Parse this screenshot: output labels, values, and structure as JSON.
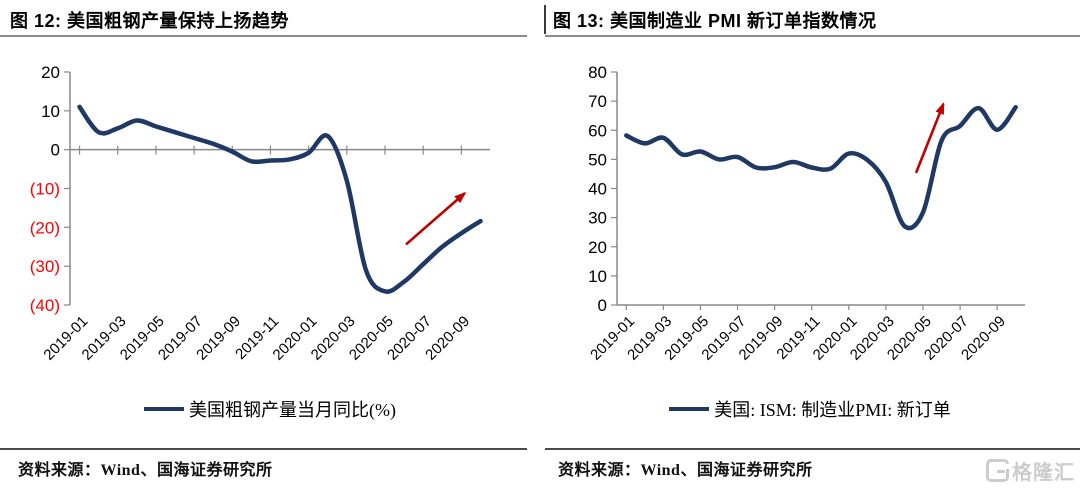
{
  "figures": [
    {
      "title": "图 12:  美国粗钢产量保持上扬趋势",
      "source": "资料来源：Wind、国海证券研究所"
    },
    {
      "title": "图 13:  美国制造业 PMI 新订单指数情况",
      "source": "资料来源：Wind、国海证券研究所"
    }
  ],
  "watermark": {
    "text": "格隆汇"
  },
  "colors": {
    "line": "#1f3864",
    "arrow": "#c00000",
    "negative_label": "#fe0000",
    "axis": "#888888",
    "text": "#000000",
    "watermark": "#cccccc"
  },
  "chart_data": [
    {
      "type": "line",
      "title": "图 12:  美国粗钢产量保持上扬趋势",
      "legend": "美国粗钢产量当月同比(%)",
      "x": [
        "2019-01",
        "2019-02",
        "2019-03",
        "2019-04",
        "2019-05",
        "2019-06",
        "2019-07",
        "2019-08",
        "2019-09",
        "2019-10",
        "2019-11",
        "2019-12",
        "2020-01",
        "2020-02",
        "2020-03",
        "2020-04",
        "2020-05",
        "2020-06",
        "2020-07",
        "2020-08",
        "2020-09",
        "2020-10"
      ],
      "values": [
        11.0,
        4.5,
        5.5,
        7.5,
        6.0,
        4.5,
        3.0,
        1.5,
        -0.5,
        -3.0,
        -2.8,
        -2.5,
        -0.8,
        3.5,
        -8.0,
        -31.0,
        -36.5,
        -34.0,
        -29.5,
        -25.0,
        -21.5,
        -18.4
      ],
      "ylim": [
        -40,
        20
      ],
      "ytick_step": 10,
      "ylabel_negative_style": "red-parentheses",
      "x_axis_at": "zero",
      "xtick_every": 2,
      "grid": false,
      "legend_position": "bottom",
      "annotation_arrow": {
        "units": "plot-fraction",
        "x1": 0.8,
        "y1": 0.74,
        "x2": 0.94,
        "y2": 0.52
      }
    },
    {
      "type": "line",
      "title": "图 13:  美国制造业 PMI 新订单指数情况",
      "legend": "美国: ISM: 制造业PMI: 新订单",
      "x": [
        "2019-01",
        "2019-02",
        "2019-03",
        "2019-04",
        "2019-05",
        "2019-06",
        "2019-07",
        "2019-08",
        "2019-09",
        "2019-10",
        "2019-11",
        "2019-12",
        "2020-01",
        "2020-02",
        "2020-03",
        "2020-04",
        "2020-05",
        "2020-06",
        "2020-07",
        "2020-08",
        "2020-09",
        "2020-10"
      ],
      "values": [
        58.2,
        55.5,
        57.4,
        51.7,
        52.7,
        50.0,
        50.8,
        47.2,
        47.3,
        49.1,
        47.2,
        46.8,
        52.0,
        49.8,
        42.2,
        27.1,
        31.8,
        56.4,
        61.5,
        67.6,
        60.2,
        67.9
      ],
      "ylim": [
        0,
        80
      ],
      "ytick_step": 10,
      "x_axis_at": "bottom",
      "xtick_every": 2,
      "grid": false,
      "legend_position": "bottom",
      "annotation_arrow": {
        "units": "plot-fraction",
        "x1": 0.733,
        "y1": 0.433,
        "x2": 0.8,
        "y2": 0.137
      }
    }
  ]
}
